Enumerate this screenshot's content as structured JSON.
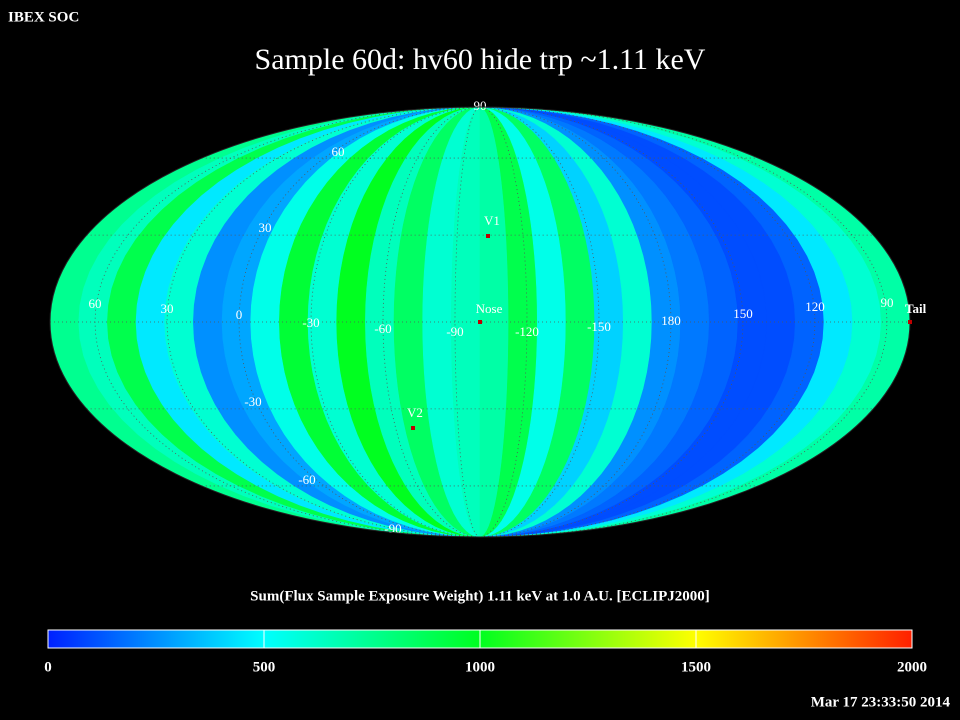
{
  "header": "IBEX SOC",
  "title": "Sample 60d: hv60 hide trp ~1.11 keV",
  "map": {
    "stripes": [
      750,
      650,
      900,
      450,
      600,
      250,
      300,
      550,
      950,
      600,
      1000,
      650,
      850,
      600,
      650,
      700,
      900,
      550,
      850,
      400,
      600,
      250,
      200,
      150,
      100,
      100,
      150,
      450,
      600,
      700
    ],
    "lon_labels": [
      60,
      30,
      0,
      -30,
      -60,
      -90,
      -120,
      -150,
      180,
      150,
      120,
      90
    ],
    "lat_labels": [
      90,
      60,
      30,
      -30,
      -60,
      -90
    ],
    "markers": [
      "V1",
      "Nose",
      "V2",
      "Tail"
    ]
  },
  "colorbar": {
    "caption": "Sum(Flux Sample Exposure Weight)  1.11 keV at 1.0 A.U. [ECLIPJ2000]",
    "range": [
      0,
      2000
    ],
    "ticks": [
      0,
      500,
      1000,
      1500,
      2000
    ],
    "colors": [
      "#0020ff",
      "#00ffff",
      "#00ff20",
      "#ffff00",
      "#ff2000"
    ]
  },
  "timestamp": "Mar 17 23:33:50 2014"
}
